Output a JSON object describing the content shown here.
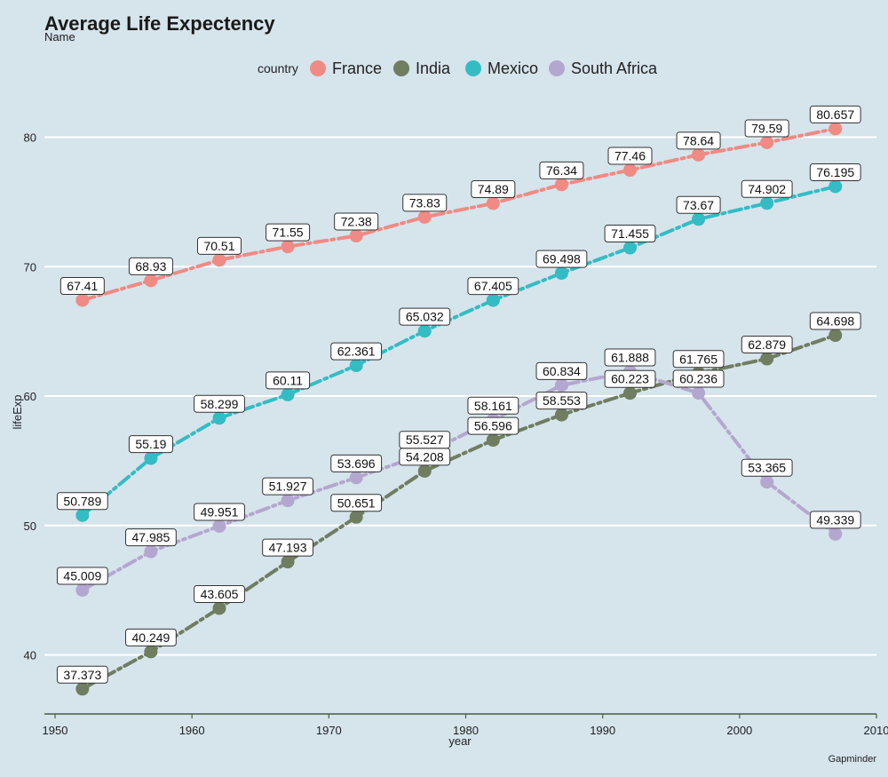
{
  "chart_data": {
    "type": "line",
    "title": "Average Life Expectency",
    "subtitle": "Name",
    "xlabel": "year",
    "ylabel": "lifeExp",
    "caption": "Gapminder",
    "legend_title": "country",
    "legend_position": "top",
    "xlim": [
      1950,
      2010
    ],
    "ylim": [
      35,
      83
    ],
    "x_ticks": [
      1950,
      1960,
      1970,
      1980,
      1990,
      2000,
      2010
    ],
    "y_ticks": [
      40,
      50,
      60,
      70,
      80
    ],
    "grid": true,
    "x": [
      1952,
      1957,
      1962,
      1967,
      1972,
      1977,
      1982,
      1987,
      1992,
      1997,
      2002,
      2007
    ],
    "series": [
      {
        "name": "France",
        "color": "#f08a84",
        "labels": [
          "67.41",
          "68.93",
          "70.51",
          "71.55",
          "72.38",
          "73.83",
          "74.89",
          "76.34",
          "77.46",
          "78.64",
          "79.59",
          "80.657"
        ],
        "values": [
          67.41,
          68.93,
          70.51,
          71.55,
          72.38,
          73.83,
          74.89,
          76.34,
          77.46,
          78.64,
          79.59,
          80.657
        ]
      },
      {
        "name": "India",
        "color": "#6f7d61",
        "labels": [
          "37.373",
          "40.249",
          "43.605",
          "47.193",
          "50.651",
          "54.208",
          "56.596",
          "58.553",
          "60.223",
          "61.765",
          "62.879",
          "64.698"
        ],
        "values": [
          37.373,
          40.249,
          43.605,
          47.193,
          50.651,
          54.208,
          56.596,
          58.553,
          60.223,
          61.765,
          62.879,
          64.698
        ]
      },
      {
        "name": "Mexico",
        "color": "#34bcc4",
        "labels": [
          "50.789",
          "55.19",
          "58.299",
          "60.11",
          "62.361",
          "65.032",
          "67.405",
          "69.498",
          "71.455",
          "73.67",
          "74.902",
          "76.195"
        ],
        "values": [
          50.789,
          55.19,
          58.299,
          60.11,
          62.361,
          65.032,
          67.405,
          69.498,
          71.455,
          73.67,
          74.902,
          76.195
        ]
      },
      {
        "name": "South Africa",
        "color": "#b4a7cf",
        "labels": [
          "45.009",
          "47.985",
          "49.951",
          "51.927",
          "53.696",
          "55.527",
          "58.161",
          "60.834",
          "61.888",
          "60.236",
          "53.365",
          "49.339"
        ],
        "values": [
          45.009,
          47.985,
          49.951,
          51.927,
          53.696,
          55.527,
          58.161,
          60.834,
          61.888,
          60.236,
          53.365,
          49.339
        ]
      }
    ]
  }
}
